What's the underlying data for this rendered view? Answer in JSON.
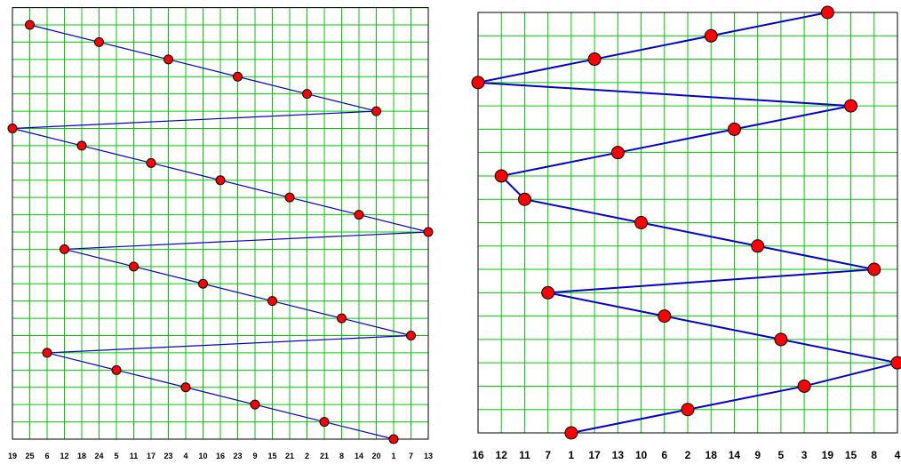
{
  "chart_data": [
    {
      "type": "line",
      "grid": true,
      "grid_color": "#00cc00",
      "line_color": "#0000cc",
      "marker_color": "#ff0000",
      "marker_edge_color": "#000000",
      "x_tick_labels": [
        "19",
        "25",
        "6",
        "12",
        "18",
        "24",
        "5",
        "11",
        "17",
        "23",
        "4",
        "10",
        "16",
        "23",
        "9",
        "15",
        "21",
        "2",
        "21",
        "8",
        "14",
        "20",
        "1",
        "7",
        "13"
      ],
      "points": [
        {
          "col": 1,
          "row": 1
        },
        {
          "col": 5,
          "row": 2
        },
        {
          "col": 9,
          "row": 3
        },
        {
          "col": 13,
          "row": 4
        },
        {
          "col": 17,
          "row": 5
        },
        {
          "col": 21,
          "row": 6
        },
        {
          "col": 0,
          "row": 7
        },
        {
          "col": 4,
          "row": 8
        },
        {
          "col": 8,
          "row": 9
        },
        {
          "col": 12,
          "row": 10
        },
        {
          "col": 16,
          "row": 11
        },
        {
          "col": 20,
          "row": 12
        },
        {
          "col": 24,
          "row": 13
        },
        {
          "col": 3,
          "row": 14
        },
        {
          "col": 7,
          "row": 15
        },
        {
          "col": 11,
          "row": 16
        },
        {
          "col": 15,
          "row": 17
        },
        {
          "col": 19,
          "row": 18
        },
        {
          "col": 23,
          "row": 19
        },
        {
          "col": 2,
          "row": 20
        },
        {
          "col": 6,
          "row": 21
        },
        {
          "col": 10,
          "row": 22
        },
        {
          "col": 14,
          "row": 23
        },
        {
          "col": 18,
          "row": 24
        },
        {
          "col": 22,
          "row": 25
        }
      ]
    },
    {
      "type": "line",
      "grid": true,
      "grid_color": "#00cc00",
      "line_color": "#0000cc",
      "marker_color": "#ff0000",
      "marker_edge_color": "#000000",
      "x_tick_labels": [
        "16",
        "12",
        "11",
        "7",
        "1",
        "17",
        "13",
        "10",
        "6",
        "2",
        "18",
        "14",
        "9",
        "5",
        "3",
        "19",
        "15",
        "8",
        "4"
      ],
      "points": [
        {
          "col": 15,
          "row": 1
        },
        {
          "col": 10,
          "row": 2
        },
        {
          "col": 5,
          "row": 3
        },
        {
          "col": 0,
          "row": 4
        },
        {
          "col": 16,
          "row": 5
        },
        {
          "col": 11,
          "row": 6
        },
        {
          "col": 6,
          "row": 7
        },
        {
          "col": 1,
          "row": 8
        },
        {
          "col": 2,
          "row": 9
        },
        {
          "col": 7,
          "row": 10
        },
        {
          "col": 12,
          "row": 11
        },
        {
          "col": 17,
          "row": 12
        },
        {
          "col": 3,
          "row": 13
        },
        {
          "col": 8,
          "row": 14
        },
        {
          "col": 13,
          "row": 15
        },
        {
          "col": 18,
          "row": 16
        },
        {
          "col": 14,
          "row": 17
        },
        {
          "col": 9,
          "row": 18
        },
        {
          "col": 4,
          "row": 19
        }
      ]
    }
  ]
}
